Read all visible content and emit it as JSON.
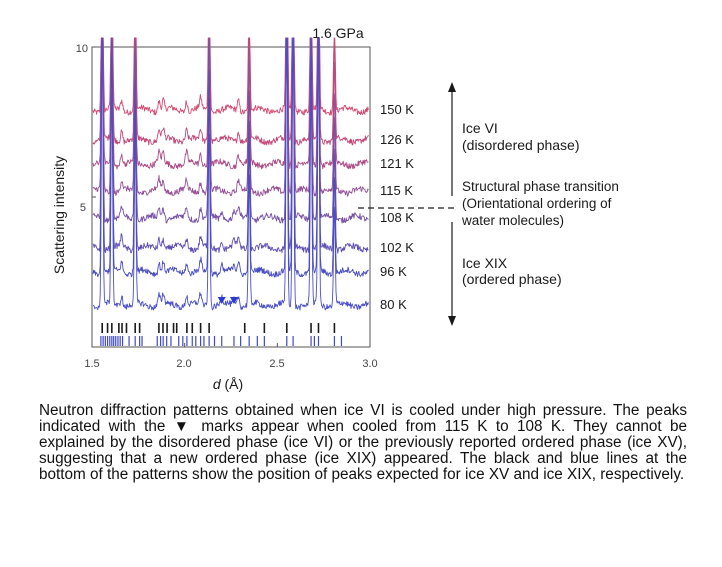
{
  "chart_data": {
    "type": "line",
    "title": "1.6 GPa",
    "xlabel_italic": "d",
    "xlabel_unit": " (Å)",
    "ylabel": "Scattering intensity",
    "xlim": [
      1.5,
      3.0
    ],
    "ylim": [
      0,
      10
    ],
    "x_ticks": [
      "1.5",
      "2.0",
      "2.5",
      "3.0"
    ],
    "y_ticks": [
      "5",
      "10"
    ],
    "grid": false,
    "series": [
      {
        "name": "150 K",
        "offset": 7.9,
        "color": "#d44a70"
      },
      {
        "name": "126 K",
        "offset": 6.9,
        "color": "#c44878"
      },
      {
        "name": "121 K",
        "offset": 6.1,
        "color": "#ad4c86"
      },
      {
        "name": "115 K",
        "offset": 5.2,
        "color": "#964f95"
      },
      {
        "name": "108 K",
        "offset": 4.3,
        "color": "#7750a5"
      },
      {
        "name": "102 K",
        "offset": 3.3,
        "color": "#5e4fb3"
      },
      {
        "name": "96 K",
        "offset": 2.5,
        "color": "#484ec0"
      },
      {
        "name": "80 K",
        "offset": 1.4,
        "color": "#4a4fcc"
      }
    ],
    "peaks_shared": [
      1.555,
      1.607,
      1.733,
      2.132,
      2.348,
      2.551,
      2.585,
      2.682,
      2.722,
      2.808
    ],
    "peaks_small": [
      1.66,
      1.862,
      1.884,
      2.01,
      2.086,
      2.29
    ],
    "peaks_new_ordered": [
      2.2,
      2.266
    ],
    "ice_xv_ticks": [
      1.555,
      1.584,
      1.607,
      1.645,
      1.662,
      1.686,
      1.733,
      1.757,
      1.861,
      1.883,
      1.905,
      1.94,
      1.957,
      2.012,
      2.041,
      2.086,
      2.132,
      2.324,
      2.43,
      2.551,
      2.682,
      2.722,
      2.808
    ],
    "ice_xix_ticks": [
      1.548,
      1.56,
      1.572,
      1.584,
      1.596,
      1.607,
      1.617,
      1.628,
      1.64,
      1.652,
      1.665,
      1.7,
      1.733,
      1.757,
      1.77,
      1.852,
      1.87,
      1.884,
      1.903,
      1.926,
      1.968,
      1.99,
      2.012,
      2.041,
      2.06,
      2.086,
      2.104,
      2.132,
      2.161,
      2.2,
      2.266,
      2.302,
      2.348,
      2.392,
      2.43,
      2.551,
      2.585,
      2.682,
      2.7,
      2.722,
      2.808,
      2.846
    ],
    "ice_xv_color": "#1a1a1a",
    "ice_xix_color": "#3f48c8",
    "marker_color": "#2a3bd0",
    "annotations": {
      "ice_vi_line1": "Ice VI",
      "ice_vi_line2": "(disordered phase)",
      "transition_line1": "Structural phase transition",
      "transition_line2": "(Orientational ordering of",
      "transition_line3": "water molecules)",
      "ice_xix_line1": "Ice XIX",
      "ice_xix_line2": "(ordered phase)"
    }
  },
  "caption": "Neutron diffraction patterns obtained when ice VI is cooled under high pressure. The peaks indicated with the ▼ marks appear when cooled from 115 K to 108 K. They cannot be explained by the disordered phase (ice VI) or the previously reported ordered phase (ice XV), suggesting that a new ordered phase (ice XIX) appeared. The black and blue lines at the bottom of the patterns show the position of peaks expected for ice XV and ice XIX, respectively."
}
